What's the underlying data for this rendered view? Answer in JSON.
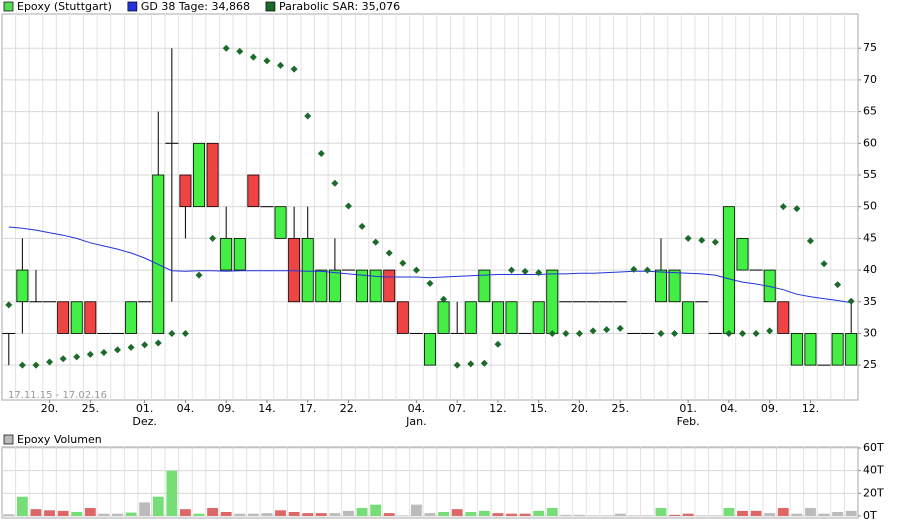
{
  "chart_data": [
    {
      "type": "candlestick",
      "date_range": "17.11.15 - 17.02.16",
      "categories": [
        null,
        null,
        null,
        "20.",
        null,
        null,
        "25.",
        null,
        null,
        null,
        "01.",
        null,
        null,
        "04.",
        null,
        null,
        "09.",
        null,
        null,
        "14.",
        null,
        null,
        "17.",
        null,
        null,
        "22.",
        null,
        null,
        null,
        null,
        "04.",
        null,
        null,
        "07.",
        null,
        null,
        "12.",
        null,
        null,
        "15.",
        null,
        null,
        "20.",
        null,
        null,
        "25.",
        null,
        null,
        null,
        null,
        "01.",
        null,
        null,
        "04.",
        null,
        null,
        "09.",
        null,
        null,
        "12.",
        null,
        null,
        null
      ],
      "month_labels": [
        null,
        null,
        null,
        null,
        null,
        null,
        null,
        null,
        null,
        null,
        "Dez.",
        null,
        null,
        null,
        null,
        null,
        null,
        null,
        null,
        null,
        null,
        null,
        null,
        null,
        null,
        null,
        null,
        null,
        null,
        null,
        "Jan.",
        null,
        null,
        null,
        null,
        null,
        null,
        null,
        null,
        null,
        null,
        null,
        null,
        null,
        null,
        null,
        null,
        null,
        null,
        null,
        "Feb.",
        null,
        null,
        null,
        null,
        null,
        null,
        null,
        null,
        null,
        null,
        null,
        null
      ],
      "ylim": [
        19.5,
        80.4
      ],
      "yticks": [
        25,
        30,
        35,
        40,
        45,
        50,
        55,
        60,
        65,
        70,
        75
      ],
      "grid": true,
      "series": [
        {
          "name": "Epoxy (Stuttgart)",
          "kind": "ohlc",
          "color": "#55dd55",
          "up_color": "#44ee44",
          "down_color": "#ee4444",
          "flat_color": "#000000",
          "open": [
            30,
            35,
            35,
            35,
            35,
            30,
            35,
            30,
            30,
            30,
            35,
            30,
            60,
            55,
            50,
            60,
            40,
            40,
            55,
            50,
            45,
            45,
            35,
            35,
            35,
            40,
            35,
            35,
            40,
            35,
            30,
            25,
            30,
            30,
            30,
            35,
            30,
            30,
            30,
            30,
            30,
            35,
            35,
            35,
            35,
            35,
            30,
            30,
            35,
            35,
            30,
            35,
            30,
            30,
            40,
            40,
            35,
            35,
            25,
            25,
            25,
            25,
            25
          ],
          "high": [
            30,
            45,
            40,
            35,
            35,
            35,
            35,
            30,
            30,
            35,
            35,
            65,
            75,
            55,
            60,
            60,
            50,
            45,
            55,
            50,
            50,
            50,
            50,
            40,
            45,
            40,
            40,
            40,
            40,
            35,
            30,
            30,
            35,
            35,
            35,
            40,
            35,
            35,
            30,
            35,
            40,
            35,
            35,
            35,
            35,
            35,
            30,
            30,
            45,
            40,
            35,
            35,
            30,
            50,
            45,
            40,
            40,
            35,
            30,
            30,
            25,
            30,
            35
          ],
          "low": [
            25,
            30,
            35,
            35,
            30,
            30,
            30,
            30,
            30,
            30,
            35,
            30,
            35,
            45,
            50,
            50,
            40,
            40,
            50,
            50,
            45,
            35,
            35,
            35,
            35,
            40,
            35,
            35,
            35,
            30,
            30,
            25,
            30,
            30,
            30,
            35,
            30,
            30,
            30,
            30,
            30,
            35,
            35,
            35,
            35,
            35,
            30,
            30,
            35,
            35,
            30,
            35,
            30,
            30,
            40,
            40,
            35,
            30,
            25,
            25,
            25,
            25,
            25
          ],
          "close": [
            30,
            40,
            35,
            35,
            30,
            35,
            30,
            30,
            30,
            35,
            35,
            55,
            60,
            50,
            60,
            50,
            45,
            45,
            50,
            50,
            50,
            35,
            45,
            40,
            40,
            40,
            40,
            40,
            35,
            30,
            30,
            30,
            35,
            30,
            35,
            40,
            35,
            35,
            30,
            35,
            40,
            35,
            35,
            35,
            35,
            35,
            30,
            30,
            40,
            40,
            35,
            35,
            30,
            50,
            45,
            40,
            40,
            30,
            30,
            30,
            25,
            30,
            30
          ]
        },
        {
          "name": "GD 38 Tage: 34,868",
          "kind": "line",
          "color": "#2233dd",
          "values": [
            46.8,
            46.6,
            46.3,
            45.9,
            45.5,
            45.0,
            44.3,
            43.8,
            43.3,
            42.7,
            41.9,
            40.9,
            39.9,
            39.8,
            39.9,
            39.9,
            39.8,
            39.9,
            39.9,
            39.9,
            39.9,
            39.9,
            39.8,
            39.8,
            39.6,
            39.4,
            39.2,
            39.0,
            38.9,
            38.9,
            38.9,
            38.8,
            38.9,
            39.0,
            39.1,
            39.2,
            39.3,
            39.3,
            39.3,
            39.3,
            39.4,
            39.4,
            39.5,
            39.5,
            39.6,
            39.7,
            39.8,
            39.8,
            39.7,
            39.6,
            39.5,
            39.4,
            39.2,
            38.6,
            38.1,
            37.8,
            37.4,
            36.9,
            36.2,
            35.8,
            35.5,
            35.2,
            34.868
          ]
        },
        {
          "name": "Parabolic SAR: 35,076",
          "kind": "dots",
          "color": "#1a6b2a",
          "values": [
            34.5,
            25,
            25,
            25.5,
            26,
            26.3,
            26.7,
            27,
            27.4,
            27.8,
            28.2,
            28.5,
            30,
            30,
            39.2,
            45,
            75,
            74.5,
            73.6,
            73,
            72.3,
            71.7,
            64.3,
            58.4,
            53.7,
            50.1,
            46.9,
            44.4,
            42.7,
            41.1,
            40,
            37.9,
            35.4,
            25,
            25.2,
            25.3,
            28.3,
            40,
            39.8,
            39.6,
            30,
            30,
            30,
            30.4,
            30.6,
            30.8,
            40.1,
            40,
            30,
            30,
            45,
            44.7,
            44.4,
            30,
            30,
            30,
            30.4,
            50,
            49.7,
            44.6,
            41,
            37.7,
            35.076
          ]
        }
      ]
    },
    {
      "type": "bar",
      "name": "Epoxy Volumen",
      "color": "#bbbbbb",
      "ylim": [
        -1.8,
        60.9
      ],
      "yticks": [
        {
          "value": 0,
          "label": "0T"
        },
        {
          "value": 20,
          "label": "20T"
        },
        {
          "value": 40,
          "label": "40T"
        },
        {
          "value": 60,
          "label": "60T"
        }
      ],
      "grid": true,
      "values": [
        1.5,
        17,
        6,
        5,
        4.5,
        3.5,
        7,
        2,
        2,
        3,
        12,
        17,
        40,
        6,
        2,
        7,
        3.5,
        2,
        2,
        2.5,
        5,
        3.5,
        2.5,
        2.5,
        2.5,
        4.5,
        7,
        10,
        2.5,
        0.5,
        10,
        2.5,
        3.5,
        6,
        3.5,
        4.5,
        2.5,
        2,
        2,
        4.5,
        7,
        1,
        1,
        0.5,
        0.5,
        2,
        0.5,
        0.5,
        7,
        1,
        2,
        0.5,
        0.5,
        7,
        4.5,
        4.5,
        2.5,
        7,
        2,
        7,
        2,
        3.5,
        4.5
      ],
      "colors": [
        "#bbbbbb",
        "#77dd77",
        "#dd6666",
        "#dd6666",
        "#dd6666",
        "#77dd77",
        "#dd6666",
        "#bbbbbb",
        "#bbbbbb",
        "#77dd77",
        "#bbbbbb",
        "#77dd77",
        "#77dd77",
        "#dd6666",
        "#77dd77",
        "#dd6666",
        "#dd6666",
        "#bbbbbb",
        "#bbbbbb",
        "#bbbbbb",
        "#dd6666",
        "#dd6666",
        "#dd6666",
        "#dd6666",
        "#bbbbbb",
        "#bbbbbb",
        "#77dd77",
        "#77dd77",
        "#dd6666",
        "#bbbbbb",
        "#bbbbbb",
        "#bbbbbb",
        "#77dd77",
        "#dd6666",
        "#77dd77",
        "#77dd77",
        "#dd6666",
        "#dd6666",
        "#dd6666",
        "#77dd77",
        "#77dd77",
        "#bbbbbb",
        "#bbbbbb",
        "#bbbbbb",
        "#bbbbbb",
        "#bbbbbb",
        "#bbbbbb",
        "#bbbbbb",
        "#77dd77",
        "#dd6666",
        "#dd6666",
        "#bbbbbb",
        "#bbbbbb",
        "#77dd77",
        "#dd6666",
        "#dd6666",
        "#bbbbbb",
        "#dd6666",
        "#bbbbbb",
        "#bbbbbb",
        "#bbbbbb",
        "#bbbbbb",
        "#bbbbbb"
      ]
    }
  ]
}
